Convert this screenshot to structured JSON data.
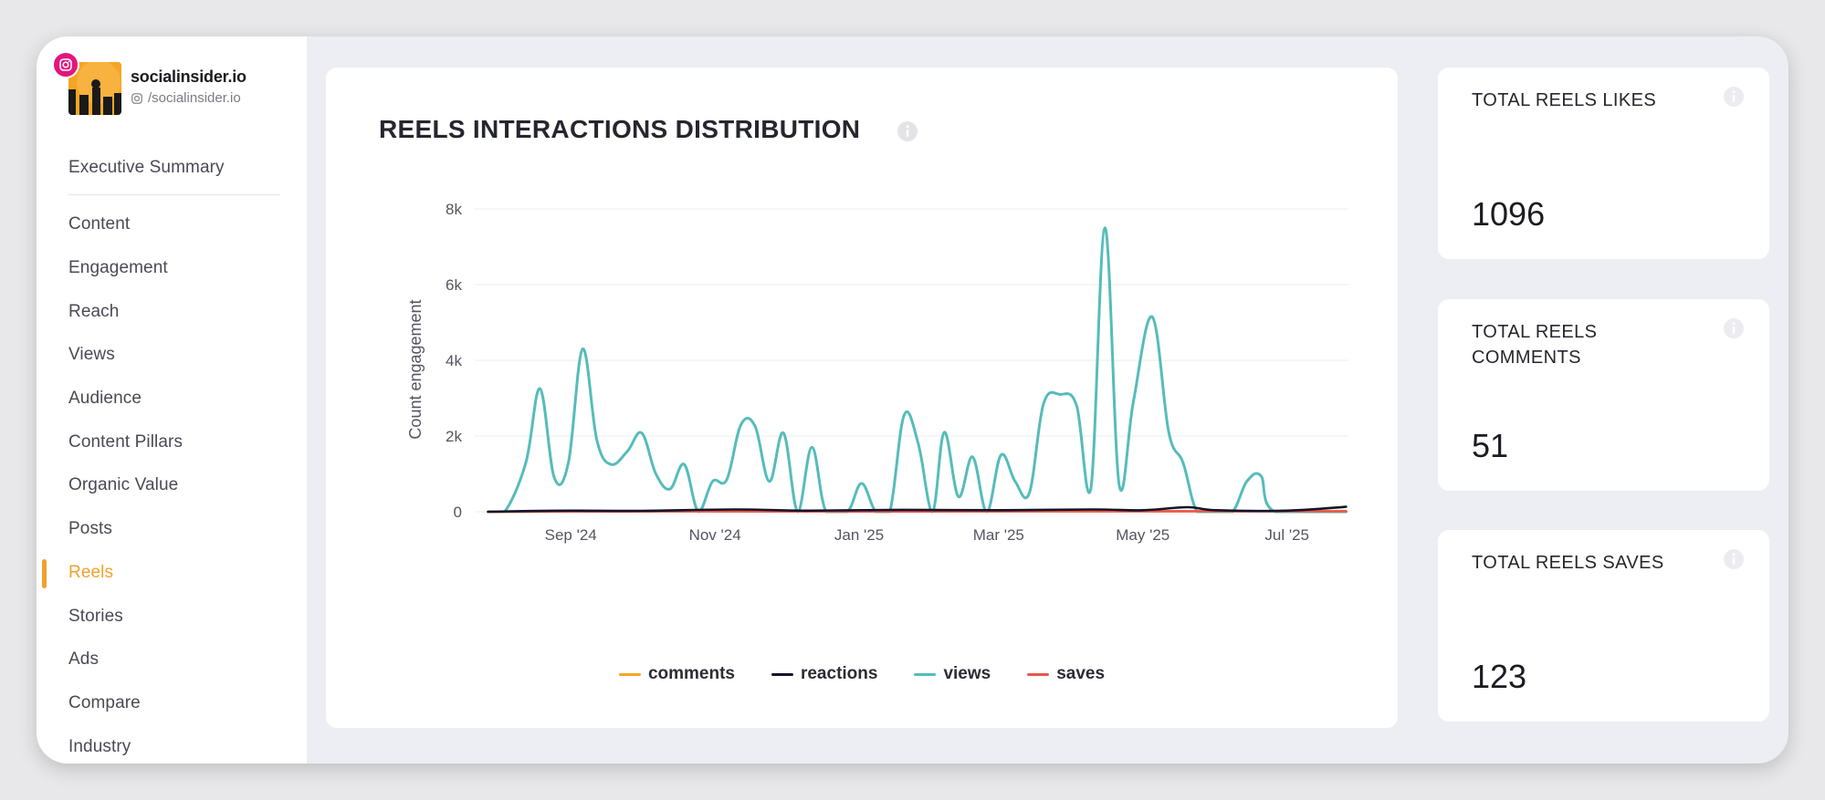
{
  "brand": {
    "name": "socialinsider.io",
    "handle": "/socialinsider.io",
    "accent": "#f0a12c",
    "badge_icon": "instagram-icon"
  },
  "sidebar": {
    "summary_label": "Executive Summary",
    "items": [
      {
        "label": "Content"
      },
      {
        "label": "Engagement"
      },
      {
        "label": "Reach"
      },
      {
        "label": "Views"
      },
      {
        "label": "Audience"
      },
      {
        "label": "Content Pillars"
      },
      {
        "label": "Organic Value"
      },
      {
        "label": "Posts"
      },
      {
        "label": "Reels",
        "active": true
      },
      {
        "label": "Stories"
      },
      {
        "label": "Ads"
      },
      {
        "label": "Compare"
      },
      {
        "label": "Industry"
      }
    ]
  },
  "chart_card": {
    "title": "REELS INTERACTIONS DISTRIBUTION",
    "info_icon": "info-icon"
  },
  "chart_data": {
    "type": "line",
    "title": "REELS INTERACTIONS DISTRIBUTION",
    "ylabel": "Count engagement",
    "xlabel": "",
    "ylim": [
      0,
      8000
    ],
    "yticks": [
      0,
      2000,
      4000,
      6000,
      8000
    ],
    "ytick_labels": [
      "0",
      "2k",
      "4k",
      "6k",
      "8k"
    ],
    "xlim": [
      "2024-07-27",
      "2025-07-27"
    ],
    "xticks": [
      "2024-09-01",
      "2024-11-01",
      "2025-01-01",
      "2025-03-01",
      "2025-05-01",
      "2025-07-01"
    ],
    "xtick_labels": [
      "Sep '24",
      "Nov '24",
      "Jan '25",
      "Mar '25",
      "May '25",
      "Jul '25"
    ],
    "grid": true,
    "legend_position": "bottom",
    "series": [
      {
        "name": "comments",
        "color": "#f5a623",
        "points": [
          [
            "2024-07-28",
            0
          ],
          [
            "2024-09-15",
            10
          ],
          [
            "2024-11-01",
            15
          ],
          [
            "2025-01-01",
            10
          ],
          [
            "2025-03-01",
            10
          ],
          [
            "2025-05-01",
            10
          ],
          [
            "2025-07-26",
            20
          ]
        ]
      },
      {
        "name": "reactions",
        "color": "#14142b",
        "points": [
          [
            "2024-07-28",
            0
          ],
          [
            "2024-08-15",
            20
          ],
          [
            "2024-09-01",
            30
          ],
          [
            "2024-10-01",
            25
          ],
          [
            "2024-11-10",
            60
          ],
          [
            "2024-12-10",
            30
          ],
          [
            "2025-01-20",
            50
          ],
          [
            "2025-03-01",
            40
          ],
          [
            "2025-04-10",
            60
          ],
          [
            "2025-05-01",
            40
          ],
          [
            "2025-05-20",
            120
          ],
          [
            "2025-06-01",
            40
          ],
          [
            "2025-07-01",
            30
          ],
          [
            "2025-07-26",
            130
          ]
        ]
      },
      {
        "name": "views",
        "color": "#55bcbb",
        "points": [
          [
            "2024-07-28",
            0
          ],
          [
            "2024-08-04",
            0
          ],
          [
            "2024-08-13",
            1300
          ],
          [
            "2024-08-19",
            3250
          ],
          [
            "2024-08-25",
            900
          ],
          [
            "2024-08-31",
            1300
          ],
          [
            "2024-09-06",
            4300
          ],
          [
            "2024-09-12",
            1900
          ],
          [
            "2024-09-18",
            1250
          ],
          [
            "2024-09-25",
            1600
          ],
          [
            "2024-10-01",
            2080
          ],
          [
            "2024-10-07",
            1000
          ],
          [
            "2024-10-13",
            600
          ],
          [
            "2024-10-19",
            1250
          ],
          [
            "2024-10-25",
            0
          ],
          [
            "2024-10-31",
            800
          ],
          [
            "2024-11-06",
            850
          ],
          [
            "2024-11-12",
            2300
          ],
          [
            "2024-11-18",
            2250
          ],
          [
            "2024-11-24",
            800
          ],
          [
            "2024-11-30",
            2080
          ],
          [
            "2024-12-06",
            0
          ],
          [
            "2024-12-12",
            1700
          ],
          [
            "2024-12-18",
            0
          ],
          [
            "2024-12-27",
            0
          ],
          [
            "2025-01-02",
            750
          ],
          [
            "2025-01-08",
            0
          ],
          [
            "2025-01-14",
            0
          ],
          [
            "2025-01-20",
            2550
          ],
          [
            "2025-01-26",
            1800
          ],
          [
            "2025-02-01",
            0
          ],
          [
            "2025-02-06",
            2100
          ],
          [
            "2025-02-12",
            400
          ],
          [
            "2025-02-18",
            1450
          ],
          [
            "2025-02-24",
            0
          ],
          [
            "2025-03-02",
            1500
          ],
          [
            "2025-03-08",
            800
          ],
          [
            "2025-03-14",
            500
          ],
          [
            "2025-03-20",
            2850
          ],
          [
            "2025-03-27",
            3100
          ],
          [
            "2025-04-03",
            2800
          ],
          [
            "2025-04-09",
            600
          ],
          [
            "2025-04-15",
            7500
          ],
          [
            "2025-04-21",
            700
          ],
          [
            "2025-04-27",
            2900
          ],
          [
            "2025-05-05",
            5150
          ],
          [
            "2025-05-12",
            2100
          ],
          [
            "2025-05-18",
            1300
          ],
          [
            "2025-05-24",
            0
          ],
          [
            "2025-06-01",
            0
          ],
          [
            "2025-06-08",
            0
          ],
          [
            "2025-06-14",
            800
          ],
          [
            "2025-06-20",
            950
          ],
          [
            "2025-06-26",
            0
          ],
          [
            "2025-07-26",
            0
          ]
        ]
      },
      {
        "name": "saves",
        "color": "#e8574e",
        "points": [
          [
            "2024-07-28",
            0
          ],
          [
            "2024-09-01",
            5
          ],
          [
            "2024-11-01",
            10
          ],
          [
            "2025-01-01",
            5
          ],
          [
            "2025-03-01",
            10
          ],
          [
            "2025-05-01",
            15
          ],
          [
            "2025-07-26",
            10
          ]
        ]
      }
    ]
  },
  "stats": [
    {
      "label": "TOTAL REELS LIKES",
      "value": "1096"
    },
    {
      "label": "TOTAL REELS COMMENTS",
      "value": "51"
    },
    {
      "label": "TOTAL REELS SAVES",
      "value": "123"
    }
  ]
}
